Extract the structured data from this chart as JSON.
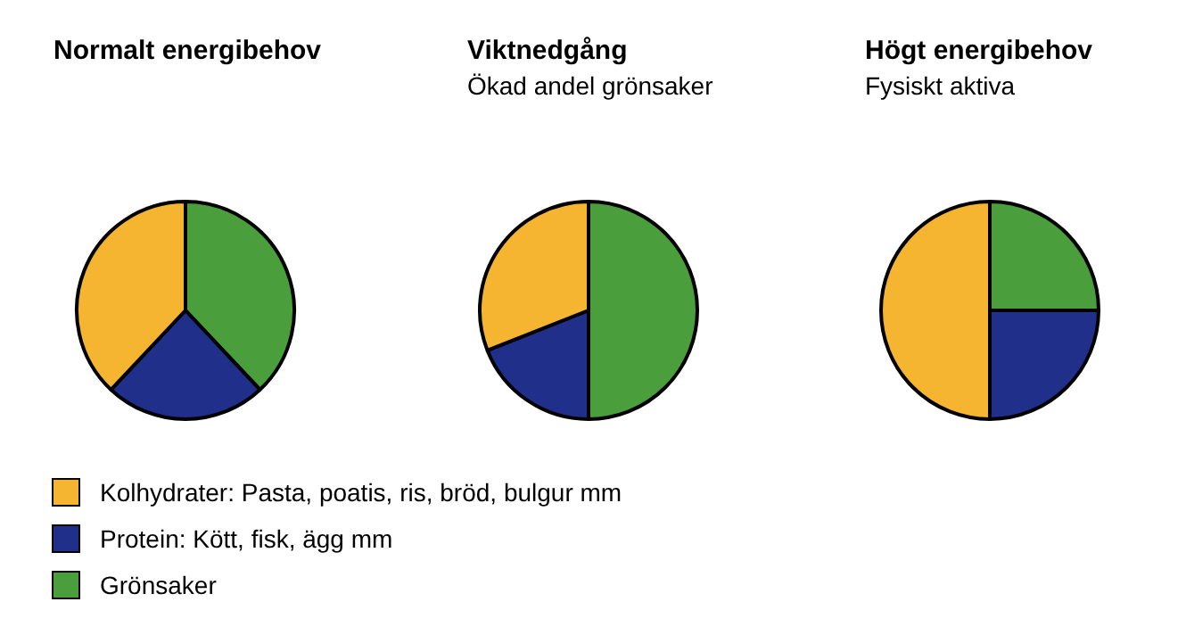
{
  "chart_data": [
    {
      "type": "pie",
      "title": "Normalt energibehov",
      "categories": [
        "Kolhydrater: Pasta, poatis, ris, bröd, bulgur mm",
        "Protein: Kött, fisk, ägg mm",
        "Grönsaker"
      ],
      "values": [
        38,
        24,
        38
      ],
      "colors": [
        "#f5b530",
        "#1f2f8a",
        "#4a9e3c"
      ],
      "legend": "bottom"
    },
    {
      "type": "pie",
      "title": "Viktnedgång",
      "subtitle": "Ökad andel grönsaker",
      "categories": [
        null,
        null,
        null
      ],
      "values": [
        31,
        19,
        50
      ],
      "colors": [
        "#f5b530",
        "#1f2f8a",
        "#4a9e3c"
      ]
    },
    {
      "type": "pie",
      "title": "Högt energibehov",
      "subtitle": "Fysiskt aktiva",
      "categories": [
        null,
        null,
        null
      ],
      "values": [
        50,
        25,
        25
      ],
      "colors": [
        "#f5b530",
        "#1f2f8a",
        "#4a9e3c"
      ]
    }
  ]
}
